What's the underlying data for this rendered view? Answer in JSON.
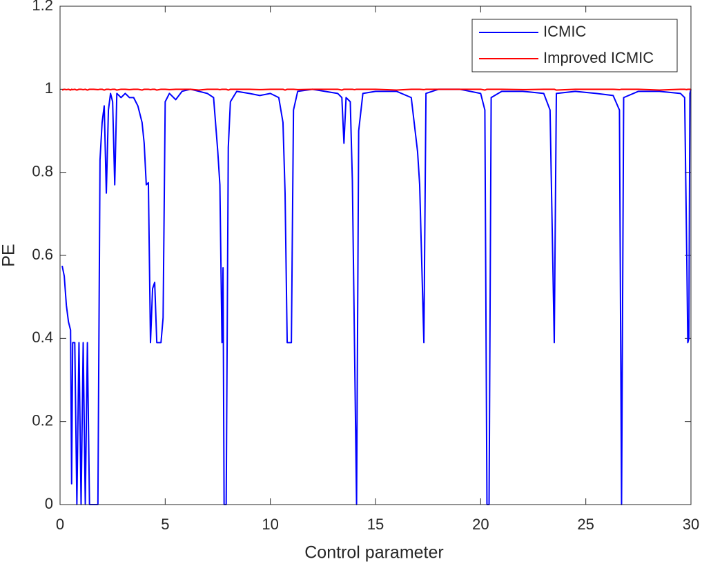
{
  "chart_data": {
    "type": "line",
    "xlabel": "Control parameter",
    "ylabel": "PE",
    "x": [
      0.1,
      0.2,
      0.3,
      0.4,
      0.5,
      0.55,
      0.6,
      0.7,
      0.8,
      0.9,
      1.0,
      1.1,
      1.2,
      1.3,
      1.4,
      1.6,
      1.8,
      1.9,
      2.0,
      2.1,
      2.2,
      2.3,
      2.4,
      2.5,
      2.6,
      2.7,
      2.9,
      3.1,
      3.3,
      3.5,
      3.7,
      3.9,
      4.0,
      4.1,
      4.2,
      4.3,
      4.4,
      4.5,
      4.6,
      4.8,
      4.9,
      5.0,
      5.2,
      5.5,
      5.8,
      6.2,
      6.6,
      7.0,
      7.3,
      7.5,
      7.6,
      7.7,
      7.75,
      7.8,
      7.9,
      8.0,
      8.1,
      8.4,
      9.0,
      9.5,
      10.0,
      10.4,
      10.6,
      10.7,
      10.8,
      10.9,
      11.0,
      11.1,
      11.3,
      12.0,
      12.6,
      13.2,
      13.4,
      13.5,
      13.6,
      13.8,
      13.9,
      14.0,
      14.1,
      14.2,
      14.4,
      15.0,
      16.0,
      16.7,
      17.0,
      17.1,
      17.3,
      17.4,
      18.0,
      19.0,
      20.0,
      20.2,
      20.3,
      20.4,
      20.5,
      21.0,
      22.0,
      23.0,
      23.3,
      23.5,
      23.6,
      24.5,
      25.5,
      26.3,
      26.6,
      26.7,
      26.8,
      27.5,
      28.5,
      29.5,
      29.7,
      29.8,
      29.85,
      29.9,
      29.95,
      30.0
    ],
    "series": [
      {
        "name": "ICMIC",
        "color": "#0000ff",
        "values": [
          0.575,
          0.55,
          0.48,
          0.44,
          0.42,
          0.05,
          0.39,
          0.39,
          0,
          0.39,
          0,
          0.39,
          0,
          0.39,
          0,
          0,
          0,
          0.83,
          0.92,
          0.96,
          0.75,
          0.95,
          0.99,
          0.97,
          0.77,
          0.99,
          0.98,
          0.99,
          0.98,
          0.98,
          0.96,
          0.92,
          0.87,
          0.77,
          0.775,
          0.39,
          0.52,
          0.535,
          0.39,
          0.39,
          0.45,
          0.97,
          0.99,
          0.975,
          0.995,
          1.0,
          0.995,
          0.99,
          0.98,
          0.85,
          0.77,
          0.39,
          0.57,
          0,
          0,
          0.86,
          0.97,
          0.995,
          0.99,
          0.985,
          0.99,
          0.98,
          0.92,
          0.75,
          0.39,
          0.39,
          0.39,
          0.95,
          0.995,
          1.0,
          0.995,
          0.99,
          0.98,
          0.87,
          0.98,
          0.97,
          0.78,
          0.39,
          0,
          0.9,
          0.99,
          0.995,
          0.995,
          0.98,
          0.85,
          0.77,
          0.39,
          0.99,
          1.0,
          1.0,
          0.99,
          0.95,
          0,
          0,
          0.98,
          0.995,
          0.995,
          0.99,
          0.95,
          0.39,
          0.99,
          0.995,
          0.99,
          0.985,
          0.95,
          0,
          0.98,
          0.995,
          0.995,
          0.99,
          0.98,
          0.6,
          0.39,
          0.4,
          0.99,
          1.0
        ]
      },
      {
        "name": "Improved ICMIC",
        "color": "#ff0000",
        "values": [
          0.998,
          1,
          0.999,
          1,
          0.998,
          1,
          0.999,
          1,
          0.998,
          1,
          1,
          0.999,
          1,
          0.998,
          1,
          1,
          0.999,
          1,
          1,
          0.998,
          1,
          1,
          0.999,
          1,
          1,
          0.998,
          1,
          1,
          0.999,
          1,
          1,
          0.998,
          1,
          1,
          1,
          0.999,
          1,
          1,
          0.998,
          1,
          1,
          1,
          0.999,
          1,
          1,
          1,
          0.998,
          1,
          1,
          1,
          0.999,
          1,
          1,
          1,
          1,
          0.998,
          1,
          1,
          1,
          0.999,
          1,
          1,
          1,
          0.998,
          1,
          1,
          1,
          1,
          0.999,
          1,
          1,
          1,
          0.998,
          1,
          1,
          1,
          1,
          0.999,
          1,
          1,
          1,
          1,
          0.998,
          1,
          1,
          1,
          0.999,
          1,
          1,
          1,
          1,
          0.998,
          1,
          1,
          1,
          1,
          0.999,
          1,
          1,
          1,
          0.998,
          1,
          1,
          1,
          0.999,
          1,
          1,
          1,
          0.998,
          1,
          1,
          0.999,
          1,
          1,
          1,
          1
        ]
      }
    ],
    "xlim": [
      0,
      30
    ],
    "xticks": [
      0,
      5,
      10,
      15,
      20,
      25,
      30
    ],
    "ylim": [
      0,
      1.2
    ],
    "yticks": [
      0,
      0.2,
      0.4,
      0.6,
      0.8,
      1,
      1.2
    ],
    "grid": false,
    "legend": "upper right"
  }
}
